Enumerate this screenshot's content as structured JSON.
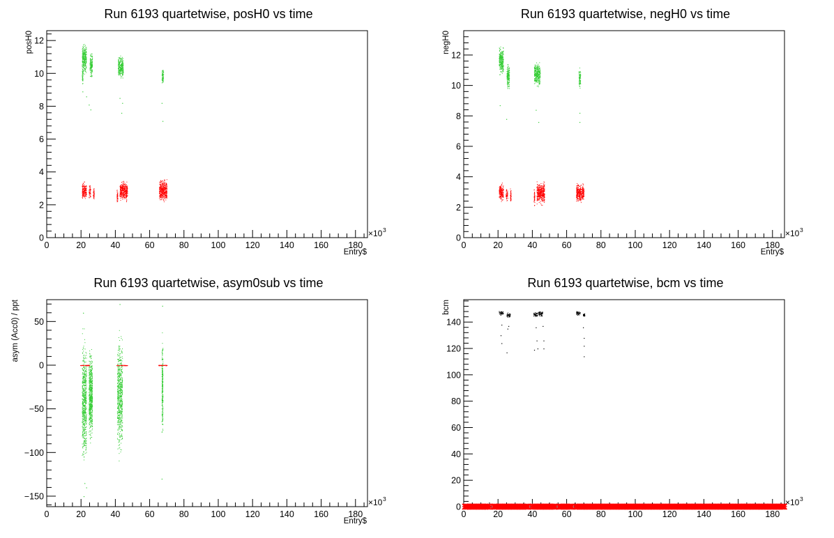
{
  "chart_data": [
    {
      "type": "scatter",
      "title": "Run 6193 quartetwise, posH0 vs time",
      "xlabel": "Entry$",
      "ylabel": "posH0",
      "x_multiplier": "×10",
      "x_multiplier_exp": "3",
      "xlim": [
        0,
        187
      ],
      "ylim": [
        0,
        12.6
      ],
      "x_ticks": [
        0,
        20,
        40,
        60,
        80,
        100,
        120,
        140,
        160,
        180
      ],
      "y_ticks": [
        0,
        2,
        4,
        6,
        8,
        10,
        12
      ],
      "series": [
        {
          "color": "#33cc33",
          "clusters": [
            {
              "x": [
                20.5,
                23
              ],
              "y": [
                9.8,
                12.0
              ]
            },
            {
              "x": [
                20.5,
                21
              ],
              "y": [
                9.3,
                10.5
              ]
            },
            {
              "x": [
                25,
                26.5
              ],
              "y": [
                9.6,
                11.4
              ]
            },
            {
              "x": [
                41.5,
                44.5
              ],
              "y": [
                9.5,
                11.2
              ]
            },
            {
              "x": [
                67,
                68
              ],
              "y": [
                9.2,
                10.5
              ]
            }
          ],
          "outliers": [
            [
              24.5,
              8.1
            ],
            [
              25.5,
              7.8
            ],
            [
              23,
              8.6
            ],
            [
              42.5,
              8.5
            ],
            [
              43.5,
              7.6
            ],
            [
              67,
              8.2
            ],
            [
              67.5,
              7.1
            ],
            [
              44,
              8.2
            ],
            [
              20.8,
              8.9
            ]
          ]
        },
        {
          "color": "#ff0000",
          "clusters": [
            {
              "x": [
                20.5,
                23
              ],
              "y": [
                2.2,
                3.5
              ]
            },
            {
              "x": [
                24.5,
                25.5
              ],
              "y": [
                2.3,
                3.3
              ]
            },
            {
              "x": [
                27,
                27.5
              ],
              "y": [
                2.2,
                3.2
              ]
            },
            {
              "x": [
                40.8,
                41.3
              ],
              "y": [
                1.9,
                3.3
              ]
            },
            {
              "x": [
                42.5,
                47
              ],
              "y": [
                2.1,
                3.6
              ]
            },
            {
              "x": [
                65.5,
                70
              ],
              "y": [
                2.1,
                3.7
              ]
            }
          ],
          "outliers": []
        }
      ]
    },
    {
      "type": "scatter",
      "title": "Run 6193 quartetwise, negH0 vs time",
      "xlabel": "Entry$",
      "ylabel": "negH0",
      "x_multiplier": "×10",
      "x_multiplier_exp": "3",
      "xlim": [
        0,
        187
      ],
      "ylim": [
        0,
        13.6
      ],
      "x_ticks": [
        0,
        20,
        40,
        60,
        80,
        100,
        120,
        140,
        160,
        180
      ],
      "y_ticks": [
        0,
        2,
        4,
        6,
        8,
        10,
        12
      ],
      "series": [
        {
          "color": "#33cc33",
          "clusters": [
            {
              "x": [
                20.5,
                23
              ],
              "y": [
                10.5,
                12.7
              ]
            },
            {
              "x": [
                25,
                26.5
              ],
              "y": [
                9.5,
                11.7
              ]
            },
            {
              "x": [
                41,
                44.5
              ],
              "y": [
                9.8,
                11.7
              ]
            },
            {
              "x": [
                67,
                68
              ],
              "y": [
                9.6,
                11.3
              ]
            }
          ],
          "outliers": [
            [
              21,
              8.7
            ],
            [
              24.8,
              7.8
            ],
            [
              42,
              8.4
            ],
            [
              43.5,
              7.6
            ],
            [
              67.5,
              7.6
            ],
            [
              67.5,
              8.2
            ]
          ]
        },
        {
          "color": "#ff0000",
          "clusters": [
            {
              "x": [
                20.5,
                23
              ],
              "y": [
                2.3,
                3.7
              ]
            },
            {
              "x": [
                24.5,
                25.5
              ],
              "y": [
                2.3,
                3.4
              ]
            },
            {
              "x": [
                27,
                27.5
              ],
              "y": [
                2.2,
                3.3
              ]
            },
            {
              "x": [
                40.8,
                41.3
              ],
              "y": [
                2.0,
                3.3
              ]
            },
            {
              "x": [
                42.5,
                47
              ],
              "y": [
                2.1,
                3.8
              ]
            },
            {
              "x": [
                65.5,
                70
              ],
              "y": [
                2.2,
                3.7
              ]
            }
          ],
          "outliers": []
        }
      ]
    },
    {
      "type": "scatter",
      "title": "Run 6193 quartetwise, asym0sub vs time",
      "xlabel": "Entry$",
      "ylabel": "asym (Acc0) / ppt",
      "x_multiplier": "×10",
      "x_multiplier_exp": "3",
      "xlim": [
        0,
        187
      ],
      "ylim": [
        -162,
        75
      ],
      "x_ticks": [
        0,
        20,
        40,
        60,
        80,
        100,
        120,
        140,
        160,
        180
      ],
      "y_ticks": [
        -150,
        -100,
        -50,
        0,
        50
      ],
      "series": [
        {
          "color": "#33cc33",
          "clusters": [
            {
              "x": [
                20.5,
                23
              ],
              "y": [
                -125,
                45
              ]
            },
            {
              "x": [
                24.5,
                26.5
              ],
              "y": [
                -95,
                25
              ]
            },
            {
              "x": [
                41,
                44
              ],
              "y": [
                -115,
                50
              ]
            },
            {
              "x": [
                67,
                67.6
              ],
              "y": [
                -100,
                45
              ]
            }
          ],
          "outliers": [
            [
              21.5,
              -150
            ],
            [
              22,
              -135
            ],
            [
              42.5,
              70
            ],
            [
              67,
              -130
            ],
            [
              67.3,
              68
            ],
            [
              21.2,
              60
            ],
            [
              23,
              -140
            ]
          ]
        },
        {
          "color": "#ff0000",
          "clusters": [
            {
              "x": [
                19.5,
                25
              ],
              "y": [
                -0.5,
                0.5
              ]
            },
            {
              "x": [
                40.5,
                47
              ],
              "y": [
                -0.5,
                0.5
              ]
            },
            {
              "x": [
                65,
                70
              ],
              "y": [
                -0.5,
                0.5
              ]
            }
          ],
          "outliers": []
        }
      ]
    },
    {
      "type": "scatter",
      "title": "Run 6193 quartetwise, bcm vs time",
      "xlabel": "",
      "ylabel": "bcm",
      "x_multiplier": "×10",
      "x_multiplier_exp": "3",
      "xlim": [
        0,
        187
      ],
      "ylim": [
        0,
        157
      ],
      "x_ticks": [
        0,
        20,
        40,
        60,
        80,
        100,
        120,
        140,
        160,
        180
      ],
      "y_ticks": [
        0,
        20,
        40,
        60,
        80,
        100,
        120,
        140
      ],
      "series": [
        {
          "color": "#000000",
          "clusters": [
            {
              "x": [
                20.5,
                23
              ],
              "y": [
                145,
                149
              ]
            },
            {
              "x": [
                25,
                27
              ],
              "y": [
                143,
                148
              ]
            },
            {
              "x": [
                40.5,
                43
              ],
              "y": [
                144,
                148
              ]
            },
            {
              "x": [
                43.5,
                46
              ],
              "y": [
                144,
                149
              ]
            },
            {
              "x": [
                65.5,
                68
              ],
              "y": [
                145,
                149
              ]
            },
            {
              "x": [
                69.5,
                70.5
              ],
              "y": [
                144,
                147
              ]
            }
          ],
          "outliers": [
            [
              21.5,
              130
            ],
            [
              22,
              124
            ],
            [
              25,
              117
            ],
            [
              26,
              137
            ],
            [
              42,
              136
            ],
            [
              42.5,
              126
            ],
            [
              43,
              120
            ],
            [
              46,
              137
            ],
            [
              46.5,
              126
            ],
            [
              46.5,
              120
            ],
            [
              41,
              119
            ],
            [
              69.5,
              136
            ],
            [
              70,
              128
            ],
            [
              70,
              122
            ],
            [
              70,
              114
            ],
            [
              25.5,
              135
            ],
            [
              22,
              138
            ]
          ]
        },
        {
          "color": "#ff0000",
          "band": {
            "y": 0,
            "gaps": [
              [
                15,
                18
              ],
              [
                37,
                40
              ],
              [
                53,
                56
              ],
              [
                62.5,
                65.5
              ]
            ]
          },
          "clusters": [],
          "outliers": []
        }
      ]
    }
  ]
}
